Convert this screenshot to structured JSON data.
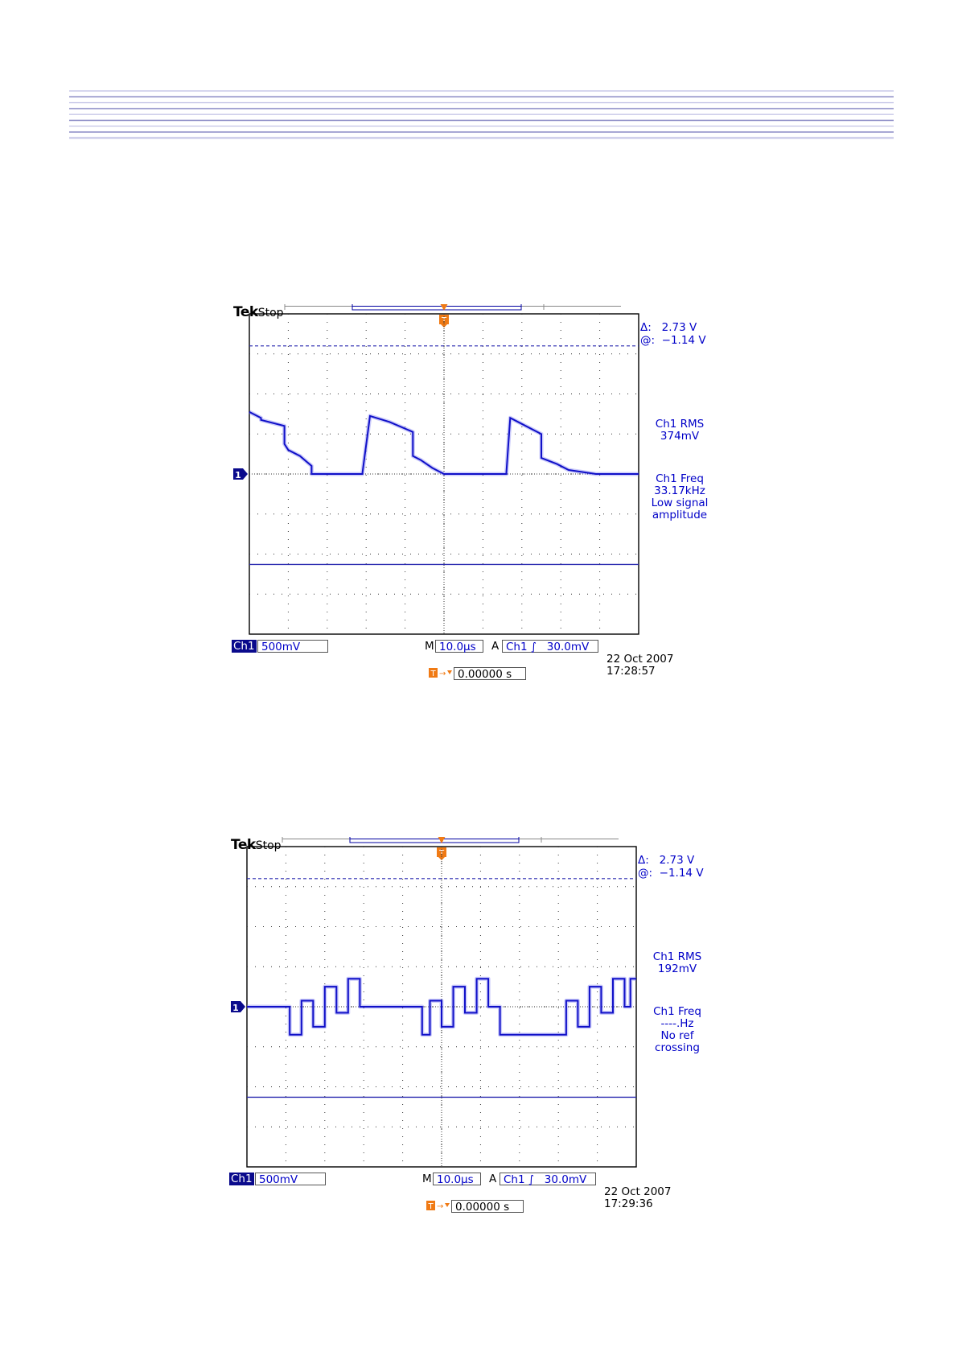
{
  "page": {
    "header_colors": [
      "#c8c8e8",
      "#8080c0"
    ]
  },
  "chart_data": [
    {
      "type": "line",
      "brand": "Tek",
      "run_state": "Stop",
      "cursor": {
        "delta": "2.73 V",
        "at": "−1.14 V",
        "delta_label": "Δ:",
        "at_label": "@:"
      },
      "measurements": [
        {
          "lines": [
            "Ch1 RMS",
            "374mV"
          ]
        },
        {
          "lines": [
            "Ch1 Freq",
            "33.17kHz",
            "Low signal",
            "amplitude"
          ]
        }
      ],
      "channel": "Ch1",
      "volts_per_div": "500mV",
      "horizontal_prefix": "M",
      "time_per_div": "10.0µs",
      "trigger_prefix": "A",
      "trigger_channel": "Ch1",
      "trigger_slope": "∫",
      "trigger_level": "30.0mV",
      "trigger_time": "0.00000 s",
      "date": "22 Oct  2007",
      "time": "17:28:57",
      "channel_marker": "1",
      "trigger_marker": "T",
      "cursor_levels_div": [
        3.2,
        -2.26
      ],
      "x_range_us": [
        -50,
        50
      ],
      "y_range_div": [
        -4,
        4
      ],
      "trace_us": [
        -50,
        -47,
        -47,
        -41,
        -41,
        -40,
        -40,
        -37,
        -37,
        -34,
        -34,
        -31,
        -31,
        -21,
        -21,
        -19,
        -19,
        -14,
        -14,
        -8,
        -8,
        -6,
        -6,
        -3,
        -3,
        0,
        0,
        16,
        16,
        17,
        17,
        19,
        19,
        25,
        25,
        29,
        29,
        32,
        32,
        39,
        39,
        42,
        42,
        50
      ],
      "trace_div": [
        1.55,
        1.4,
        1.35,
        1.2,
        0.75,
        0.6,
        0.6,
        0.45,
        0.45,
        0.2,
        0.0,
        0.0,
        0.0,
        0.0,
        0.0,
        1.45,
        1.45,
        1.3,
        1.3,
        1.05,
        0.45,
        0.35,
        0.35,
        0.15,
        0.15,
        0.0,
        0.0,
        0.0,
        0.0,
        1.4,
        1.4,
        1.3,
        1.3,
        1.0,
        0.4,
        0.25,
        0.25,
        0.1,
        0.1,
        0.0,
        0.0,
        0.0,
        0.0,
        0.0
      ]
    },
    {
      "type": "line",
      "brand": "Tek",
      "run_state": "Stop",
      "cursor": {
        "delta": "2.73 V",
        "at": "−1.14 V",
        "delta_label": "Δ:",
        "at_label": "@:"
      },
      "measurements": [
        {
          "lines": [
            "Ch1 RMS",
            "192mV"
          ]
        },
        {
          "lines": [
            "Ch1 Freq",
            "----.Hz",
            "No ref",
            "crossing"
          ]
        }
      ],
      "channel": "Ch1",
      "volts_per_div": "500mV",
      "horizontal_prefix": "M",
      "time_per_div": "10.0µs",
      "trigger_prefix": "A",
      "trigger_channel": "Ch1",
      "trigger_slope": "∫",
      "trigger_level": "30.0mV",
      "trigger_time": "0.00000 s",
      "date": "22 Oct  2007",
      "time": "17:29:36",
      "channel_marker": "1",
      "trigger_marker": "T",
      "cursor_levels_div": [
        3.2,
        -2.26
      ],
      "x_range_us": [
        -50,
        50
      ],
      "y_range_div": [
        -4,
        4
      ],
      "trace_us": [
        -50,
        -39,
        -39,
        -36,
        -36,
        -33,
        -33,
        -30,
        -30,
        -27,
        -27,
        -24,
        -24,
        -21,
        -21,
        -5,
        -5,
        -3,
        -3,
        0,
        0,
        3,
        3,
        6,
        6,
        9,
        9,
        12,
        12,
        15,
        15,
        32,
        32,
        35,
        35,
        38,
        38,
        41,
        41,
        44,
        44,
        47,
        47,
        48.5,
        48.5,
        50
      ],
      "trace_div": [
        0,
        0,
        -0.7,
        -0.7,
        0.15,
        0.15,
        -0.5,
        -0.5,
        0.5,
        0.5,
        -0.15,
        -0.15,
        0.7,
        0.7,
        0,
        0,
        -0.7,
        -0.7,
        0.15,
        0.15,
        -0.5,
        -0.5,
        0.5,
        0.5,
        -0.15,
        -0.15,
        0.7,
        0.7,
        0,
        0,
        -0.7,
        -0.7,
        0.15,
        0.15,
        -0.5,
        -0.5,
        0.5,
        0.5,
        -0.15,
        -0.15,
        0.7,
        0.7,
        0,
        0,
        0.7,
        0.7
      ]
    }
  ]
}
